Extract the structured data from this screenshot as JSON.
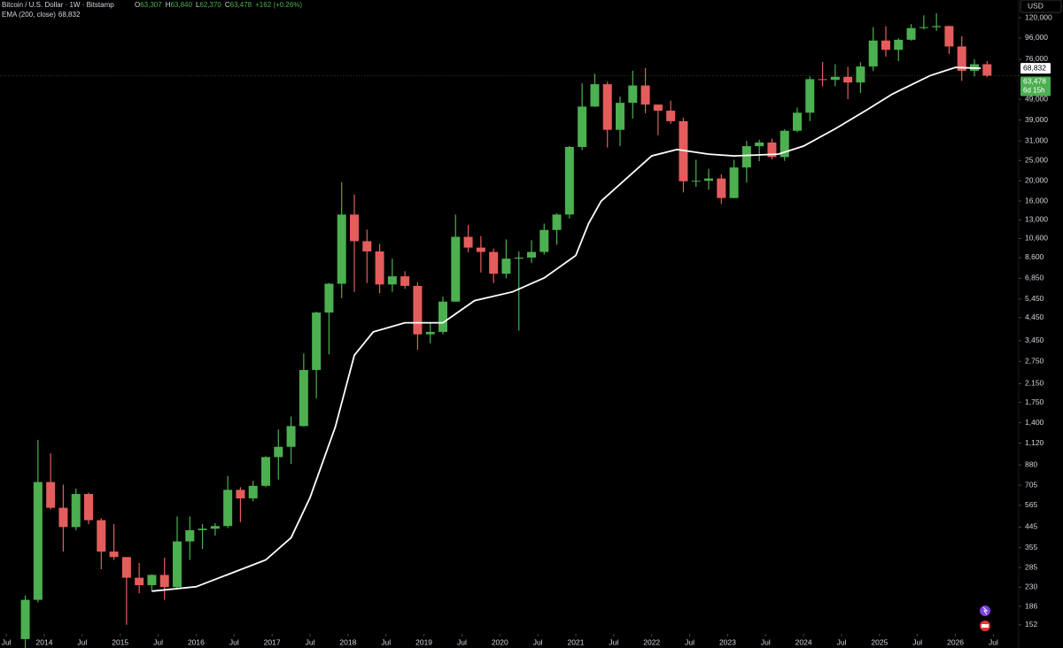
{
  "chart_data": {
    "type": "candlestick",
    "title": "Bitcoin / U.S. Dollar · 1W · Bitstamp",
    "ohlc_legend": [
      {
        "key": "O",
        "value": "63,307"
      },
      {
        "key": "H",
        "value": "63,840"
      },
      {
        "key": "L",
        "value": "62,370"
      },
      {
        "key": "C",
        "value": "63,478"
      }
    ],
    "change": "+162 (+0.26%)",
    "currency": "USD",
    "countdown": "6d 15h",
    "log_scale": true,
    "grid": false,
    "up_color": "#4caf50",
    "down_color": "#e35d5d",
    "xlim": [
      "2013-06",
      "2026-11"
    ],
    "xticks": [
      {
        "value": "2013-07",
        "label": "Jul"
      },
      {
        "value": "2014-01",
        "label": "2014"
      },
      {
        "value": "2014-07",
        "label": "Jul"
      },
      {
        "value": "2015-01",
        "label": "2015"
      },
      {
        "value": "2015-07",
        "label": "Jul"
      },
      {
        "value": "2016-01",
        "label": "2016"
      },
      {
        "value": "2016-07",
        "label": "Jul"
      },
      {
        "value": "2017-01",
        "label": "2017"
      },
      {
        "value": "2017-07",
        "label": "Jul"
      },
      {
        "value": "2018-01",
        "label": "2018"
      },
      {
        "value": "2018-07",
        "label": "Jul"
      },
      {
        "value": "2019-01",
        "label": "2019"
      },
      {
        "value": "2019-07",
        "label": "Jul"
      },
      {
        "value": "2020-01",
        "label": "2020"
      },
      {
        "value": "2020-07",
        "label": "Jul"
      },
      {
        "value": "2021-01",
        "label": "2021"
      },
      {
        "value": "2021-07",
        "label": "Jul"
      },
      {
        "value": "2022-01",
        "label": "2022"
      },
      {
        "value": "2022-07",
        "label": "Jul"
      },
      {
        "value": "2023-01",
        "label": "2023"
      },
      {
        "value": "2023-07",
        "label": "Jul"
      },
      {
        "value": "2024-01",
        "label": "2024"
      },
      {
        "value": "2024-07",
        "label": "Jul"
      },
      {
        "value": "2025-01",
        "label": "2025"
      },
      {
        "value": "2025-07",
        "label": "Jul"
      },
      {
        "value": "2026-01",
        "label": "2026"
      },
      {
        "value": "2026-07",
        "label": "Jul"
      }
    ],
    "ylim": [
      139,
      145800
    ],
    "yticks": [
      {
        "value": 120000,
        "label": "120,000"
      },
      {
        "value": 96000,
        "label": "96,000"
      },
      {
        "value": 76000,
        "label": "76,000"
      },
      {
        "value": 49000,
        "label": "49,000"
      },
      {
        "value": 39000,
        "label": "39,000"
      },
      {
        "value": 31000,
        "label": "31,000"
      },
      {
        "value": 25000,
        "label": "25,000"
      },
      {
        "value": 20000,
        "label": "20,000"
      },
      {
        "value": 16000,
        "label": "16,000"
      },
      {
        "value": 13000,
        "label": "13,000"
      },
      {
        "value": 10600,
        "label": "10,600"
      },
      {
        "value": 8600,
        "label": "8,600"
      },
      {
        "value": 6850,
        "label": "6,850"
      },
      {
        "value": 5450,
        "label": "5,450"
      },
      {
        "value": 4450,
        "label": "4,450"
      },
      {
        "value": 3450,
        "label": "3,450"
      },
      {
        "value": 2750,
        "label": "2,750"
      },
      {
        "value": 2150,
        "label": "2,150"
      },
      {
        "value": 1750,
        "label": "1,750"
      },
      {
        "value": 1400,
        "label": "1,400"
      },
      {
        "value": 1120,
        "label": "1,120"
      },
      880,
      705,
      565,
      445,
      355,
      285,
      230,
      186,
      152
    ],
    "candles": [
      {
        "x": "2013-09",
        "open": 130,
        "high": 210,
        "low": 115,
        "close": 200
      },
      {
        "x": "2013-11",
        "open": 200,
        "high": 1160,
        "low": 195,
        "close": 730
      },
      {
        "x": "2014-01",
        "open": 730,
        "high": 1000,
        "low": 540,
        "close": 550
      },
      {
        "x": "2014-03",
        "open": 550,
        "high": 710,
        "low": 340,
        "close": 445
      },
      {
        "x": "2014-05",
        "open": 445,
        "high": 680,
        "low": 430,
        "close": 640
      },
      {
        "x": "2014-07",
        "open": 640,
        "high": 650,
        "low": 460,
        "close": 480
      },
      {
        "x": "2014-09",
        "open": 480,
        "high": 490,
        "low": 280,
        "close": 340
      },
      {
        "x": "2014-11",
        "open": 340,
        "high": 460,
        "low": 310,
        "close": 320
      },
      {
        "x": "2015-01",
        "open": 320,
        "high": 320,
        "low": 152,
        "close": 255
      },
      {
        "x": "2015-03",
        "open": 255,
        "high": 300,
        "low": 215,
        "close": 235
      },
      {
        "x": "2015-05",
        "open": 235,
        "high": 265,
        "low": 220,
        "close": 263
      },
      {
        "x": "2015-07",
        "open": 263,
        "high": 318,
        "low": 200,
        "close": 230
      },
      {
        "x": "2015-09",
        "open": 230,
        "high": 500,
        "low": 225,
        "close": 380
      },
      {
        "x": "2015-11",
        "open": 380,
        "high": 500,
        "low": 310,
        "close": 430
      },
      {
        "x": "2016-01",
        "open": 430,
        "high": 460,
        "low": 350,
        "close": 437
      },
      {
        "x": "2016-03",
        "open": 437,
        "high": 465,
        "low": 405,
        "close": 450
      },
      {
        "x": "2016-05",
        "open": 450,
        "high": 780,
        "low": 440,
        "close": 670
      },
      {
        "x": "2016-07",
        "open": 670,
        "high": 690,
        "low": 470,
        "close": 610
      },
      {
        "x": "2016-09",
        "open": 610,
        "high": 740,
        "low": 590,
        "close": 700
      },
      {
        "x": "2016-11",
        "open": 700,
        "high": 970,
        "low": 690,
        "close": 960
      },
      {
        "x": "2017-01",
        "open": 960,
        "high": 1300,
        "low": 750,
        "close": 1075
      },
      {
        "x": "2017-03",
        "open": 1075,
        "high": 1500,
        "low": 890,
        "close": 1350
      },
      {
        "x": "2017-05",
        "open": 1350,
        "high": 3000,
        "low": 1340,
        "close": 2500
      },
      {
        "x": "2017-07",
        "open": 2500,
        "high": 4750,
        "low": 1830,
        "close": 4700
      },
      {
        "x": "2017-09",
        "open": 4700,
        "high": 6500,
        "low": 2970,
        "close": 6450
      },
      {
        "x": "2017-11",
        "open": 6450,
        "high": 19700,
        "low": 5500,
        "close": 13800
      },
      {
        "x": "2018-01",
        "open": 13800,
        "high": 17200,
        "low": 5900,
        "close": 10300
      },
      {
        "x": "2018-03",
        "open": 10300,
        "high": 11700,
        "low": 6500,
        "close": 9200
      },
      {
        "x": "2018-05",
        "open": 9200,
        "high": 10000,
        "low": 5800,
        "close": 6400
      },
      {
        "x": "2018-07",
        "open": 6400,
        "high": 8500,
        "low": 5900,
        "close": 7000
      },
      {
        "x": "2018-09",
        "open": 7000,
        "high": 7400,
        "low": 6100,
        "close": 6300
      },
      {
        "x": "2018-11",
        "open": 6300,
        "high": 6550,
        "low": 3120,
        "close": 3700
      },
      {
        "x": "2019-01",
        "open": 3700,
        "high": 4200,
        "low": 3350,
        "close": 3800
      },
      {
        "x": "2019-03",
        "open": 3800,
        "high": 5600,
        "low": 3700,
        "close": 5300
      },
      {
        "x": "2019-05",
        "open": 5300,
        "high": 13800,
        "low": 5300,
        "close": 10800
      },
      {
        "x": "2019-07",
        "open": 10800,
        "high": 12300,
        "low": 9100,
        "close": 9600
      },
      {
        "x": "2019-09",
        "open": 9600,
        "high": 10900,
        "low": 7300,
        "close": 9150
      },
      {
        "x": "2019-11",
        "open": 9150,
        "high": 9500,
        "low": 6500,
        "close": 7200
      },
      {
        "x": "2020-01",
        "open": 7200,
        "high": 10500,
        "low": 6850,
        "close": 8500
      },
      {
        "x": "2020-03",
        "open": 8500,
        "high": 9200,
        "low": 3850,
        "close": 8600
      },
      {
        "x": "2020-05",
        "open": 8600,
        "high": 10400,
        "low": 8100,
        "close": 9150
      },
      {
        "x": "2020-07",
        "open": 9150,
        "high": 12500,
        "low": 8900,
        "close": 11650
      },
      {
        "x": "2020-09",
        "open": 11650,
        "high": 14000,
        "low": 9900,
        "close": 13800
      },
      {
        "x": "2020-11",
        "open": 13800,
        "high": 29300,
        "low": 13200,
        "close": 29000
      },
      {
        "x": "2021-01",
        "open": 29000,
        "high": 58300,
        "low": 28000,
        "close": 45200
      },
      {
        "x": "2021-03",
        "open": 45200,
        "high": 64900,
        "low": 45000,
        "close": 57800
      },
      {
        "x": "2021-05",
        "open": 57800,
        "high": 59500,
        "low": 28800,
        "close": 35000
      },
      {
        "x": "2021-07",
        "open": 35000,
        "high": 50500,
        "low": 29300,
        "close": 47100
      },
      {
        "x": "2021-09",
        "open": 47100,
        "high": 67000,
        "low": 39600,
        "close": 57000
      },
      {
        "x": "2021-11",
        "open": 57000,
        "high": 69000,
        "low": 42000,
        "close": 46200
      },
      {
        "x": "2022-01",
        "open": 46200,
        "high": 45800,
        "low": 33000,
        "close": 43200
      },
      {
        "x": "2022-03",
        "open": 43200,
        "high": 48200,
        "low": 37400,
        "close": 38500
      },
      {
        "x": "2022-05",
        "open": 38500,
        "high": 40000,
        "low": 17600,
        "close": 19900
      },
      {
        "x": "2022-07",
        "open": 19900,
        "high": 25200,
        "low": 18700,
        "close": 20000
      },
      {
        "x": "2022-09",
        "open": 20000,
        "high": 22800,
        "low": 18150,
        "close": 20500
      },
      {
        "x": "2022-11",
        "open": 20500,
        "high": 21500,
        "low": 15500,
        "close": 16550
      },
      {
        "x": "2023-01",
        "open": 16550,
        "high": 25200,
        "low": 16500,
        "close": 23150
      },
      {
        "x": "2023-03",
        "open": 23150,
        "high": 31000,
        "low": 19600,
        "close": 29250
      },
      {
        "x": "2023-05",
        "open": 29250,
        "high": 31400,
        "low": 24800,
        "close": 30450
      },
      {
        "x": "2023-07",
        "open": 30450,
        "high": 31800,
        "low": 25300,
        "close": 25950
      },
      {
        "x": "2023-09",
        "open": 25950,
        "high": 35200,
        "low": 24900,
        "close": 34650
      },
      {
        "x": "2023-11",
        "open": 34650,
        "high": 44700,
        "low": 34100,
        "close": 42250
      },
      {
        "x": "2024-01",
        "open": 42250,
        "high": 63000,
        "low": 38500,
        "close": 61100
      },
      {
        "x": "2024-03",
        "open": 61100,
        "high": 73800,
        "low": 56500,
        "close": 60600
      },
      {
        "x": "2024-05",
        "open": 60600,
        "high": 72000,
        "low": 56500,
        "close": 62700
      },
      {
        "x": "2024-07",
        "open": 62700,
        "high": 70000,
        "low": 49000,
        "close": 58900
      },
      {
        "x": "2024-09",
        "open": 58900,
        "high": 73600,
        "low": 52500,
        "close": 70200
      },
      {
        "x": "2024-11",
        "open": 70200,
        "high": 108300,
        "low": 66800,
        "close": 93400
      },
      {
        "x": "2025-01",
        "open": 93400,
        "high": 109300,
        "low": 78200,
        "close": 84300
      },
      {
        "x": "2025-03",
        "open": 84300,
        "high": 95800,
        "low": 74500,
        "close": 94200
      },
      {
        "x": "2025-05",
        "open": 94200,
        "high": 111900,
        "low": 93300,
        "close": 107100
      },
      {
        "x": "2025-07",
        "open": 107100,
        "high": 123200,
        "low": 105300,
        "close": 108200
      },
      {
        "x": "2025-09",
        "open": 108200,
        "high": 126200,
        "low": 104000,
        "close": 109500
      },
      {
        "x": "2025-11",
        "open": 109500,
        "high": 110000,
        "low": 80500,
        "close": 87500
      },
      {
        "x": "2026-01",
        "open": 87500,
        "high": 97800,
        "low": 60000,
        "close": 67000
      },
      {
        "x": "2026-03",
        "open": 67000,
        "high": 76000,
        "low": 63000,
        "close": 72000
      },
      {
        "x": "2026-05",
        "open": 72000,
        "high": 74500,
        "low": 62370,
        "close": 63478
      }
    ],
    "ema": {
      "name": "EMA (200, close)",
      "value_label": "68,832",
      "color": "#ffffff",
      "x": [
        "2015-06",
        "2016-01",
        "2016-12",
        "2017-04",
        "2017-07",
        "2017-11",
        "2018-02",
        "2018-05",
        "2018-10",
        "2019-04",
        "2019-09",
        "2020-03",
        "2020-08",
        "2021-01",
        "2021-03",
        "2021-05",
        "2021-09",
        "2022-01",
        "2022-05",
        "2022-10",
        "2023-02",
        "2023-09",
        "2024-01",
        "2024-06",
        "2024-11",
        "2025-03",
        "2025-09",
        "2026-01",
        "2026-05"
      ],
      "values": [
        220,
        231,
        310,
        396,
        615,
        1340,
        2940,
        3800,
        4200,
        4200,
        5360,
        5900,
        6870,
        8800,
        12470,
        15990,
        20500,
        26300,
        28200,
        26800,
        26300,
        26800,
        29300,
        35400,
        43600,
        51800,
        63500,
        69500,
        68832
      ]
    }
  }
}
